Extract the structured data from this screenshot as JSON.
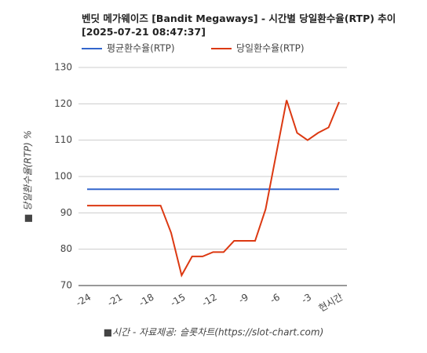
{
  "chart_data": {
    "type": "line",
    "title": "벤딧 메가웨이즈 [Bandit Megaways] - 시간별 당일환수율(RTP) 추이 [2025-07-21 08:47:37]",
    "y_label": "■ 당일환수율(RTP) %",
    "x_label": "■시간 - 자료제공: 슬롯차트(https://slot-chart.com)",
    "categories": [
      "-24",
      null,
      null,
      "-21",
      null,
      null,
      "-18",
      null,
      null,
      "-15",
      null,
      null,
      "-12",
      null,
      null,
      "-9",
      null,
      null,
      "-6",
      null,
      null,
      "-3",
      null,
      null,
      "현시간"
    ],
    "series": [
      {
        "name": "평균환수율(RTP)",
        "color": "#3366cc",
        "values": [
          96.5,
          96.5,
          96.5,
          96.5,
          96.5,
          96.5,
          96.5,
          96.5,
          96.5,
          96.5,
          96.5,
          96.5,
          96.5,
          96.5,
          96.5,
          96.5,
          96.5,
          96.5,
          96.5,
          96.5,
          96.5,
          96.5,
          96.5,
          96.5,
          96.5
        ]
      },
      {
        "name": "당일환수율(RTP)",
        "color": "#dc3912",
        "values": [
          92,
          92,
          92,
          92,
          92,
          92,
          92,
          92,
          84.5,
          72.8,
          78,
          78,
          79.2,
          79.2,
          82.3,
          82.3,
          82.3,
          91,
          106,
          121,
          112,
          110,
          112,
          113.5,
          120.5
        ]
      }
    ],
    "ylim": [
      70,
      130
    ],
    "yticks": [
      70,
      80,
      90,
      100,
      110,
      120,
      130
    ],
    "grid": true
  }
}
